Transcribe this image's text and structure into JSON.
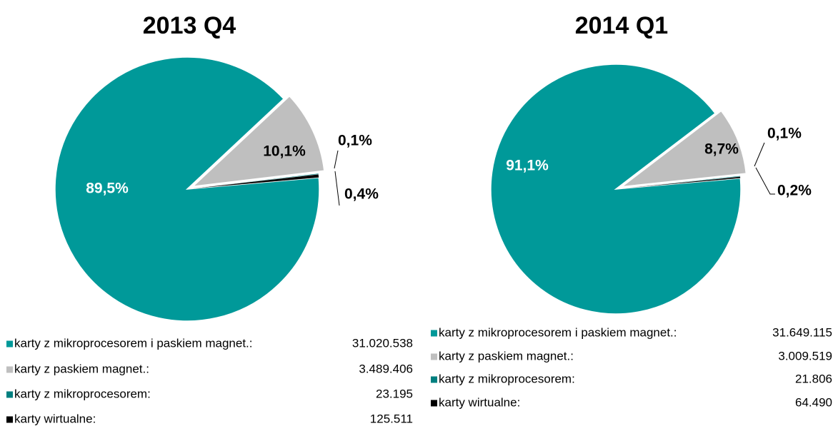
{
  "chart_data": [
    {
      "type": "pie",
      "title": "2013 Q4",
      "categories": [
        "karty z mikroprocesorem i paskiem magnet.:",
        "karty z paskiem magnet.:",
        "karty z mikroprocesorem:",
        "karty wirtualne:"
      ],
      "values": [
        89.5,
        10.1,
        0.1,
        0.4
      ],
      "value_labels": [
        "89,5%",
        "10,1%",
        "0,1%",
        "0,4%"
      ],
      "colors": [
        "#009999",
        "#bfbfbf",
        "#007f7f",
        "#000000"
      ],
      "count_labels": [
        "31.020.538",
        "3.489.406",
        "23.195",
        "125.511"
      ]
    },
    {
      "type": "pie",
      "title": "2014 Q1",
      "categories": [
        "karty z mikroprocesorem i paskiem magnet.:",
        "karty z paskiem magnet.:",
        "karty z mikroprocesorem:",
        "karty wirtualne:"
      ],
      "values": [
        91.1,
        8.7,
        0.1,
        0.2
      ],
      "value_labels": [
        "91,1%",
        "8,7%",
        "0,1%",
        "0,2%"
      ],
      "colors": [
        "#009999",
        "#bfbfbf",
        "#007f7f",
        "#000000"
      ],
      "count_labels": [
        "31.649.115",
        "3.009.519",
        "21.806",
        "64.490"
      ]
    }
  ]
}
